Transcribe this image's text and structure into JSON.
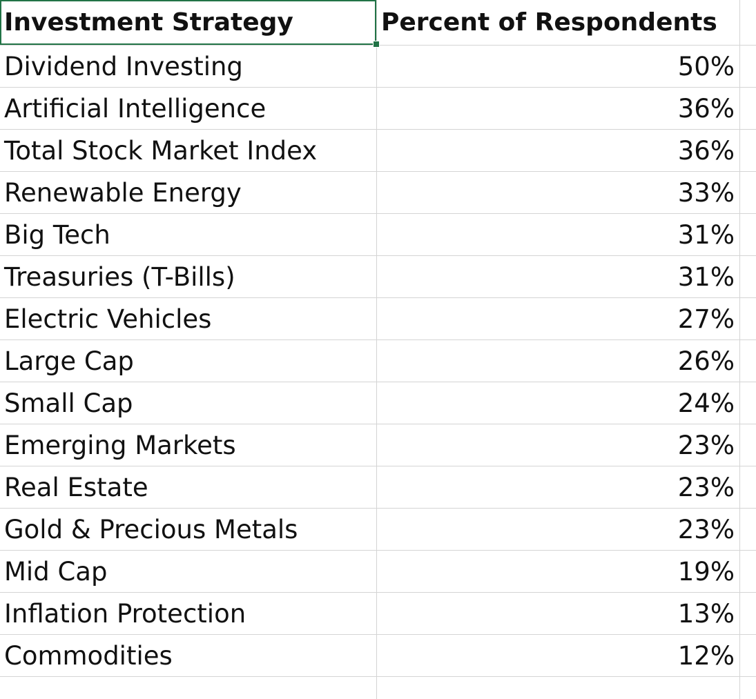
{
  "table": {
    "headers": [
      "Investment Strategy",
      "Percent of Respondents"
    ],
    "rows": [
      {
        "strategy": "Dividend Investing",
        "percent": "50%"
      },
      {
        "strategy": "Artificial Intelligence",
        "percent": "36%"
      },
      {
        "strategy": "Total Stock Market Index",
        "percent": "36%"
      },
      {
        "strategy": "Renewable Energy",
        "percent": "33%"
      },
      {
        "strategy": "Big Tech",
        "percent": "31%"
      },
      {
        "strategy": "Treasuries (T-Bills)",
        "percent": "31%"
      },
      {
        "strategy": "Electric Vehicles",
        "percent": "27%"
      },
      {
        "strategy": "Large Cap",
        "percent": "26%"
      },
      {
        "strategy": "Small Cap",
        "percent": "24%"
      },
      {
        "strategy": "Emerging Markets",
        "percent": "23%"
      },
      {
        "strategy": "Real Estate",
        "percent": "23%"
      },
      {
        "strategy": "Gold & Precious Metals",
        "percent": "23%"
      },
      {
        "strategy": "Mid Cap",
        "percent": "19%"
      },
      {
        "strategy": "Inflation Protection",
        "percent": "13%"
      },
      {
        "strategy": "Commodities",
        "percent": "12%"
      }
    ]
  },
  "colors": {
    "selection": "#217346",
    "gridline": "#d4d4d4"
  }
}
